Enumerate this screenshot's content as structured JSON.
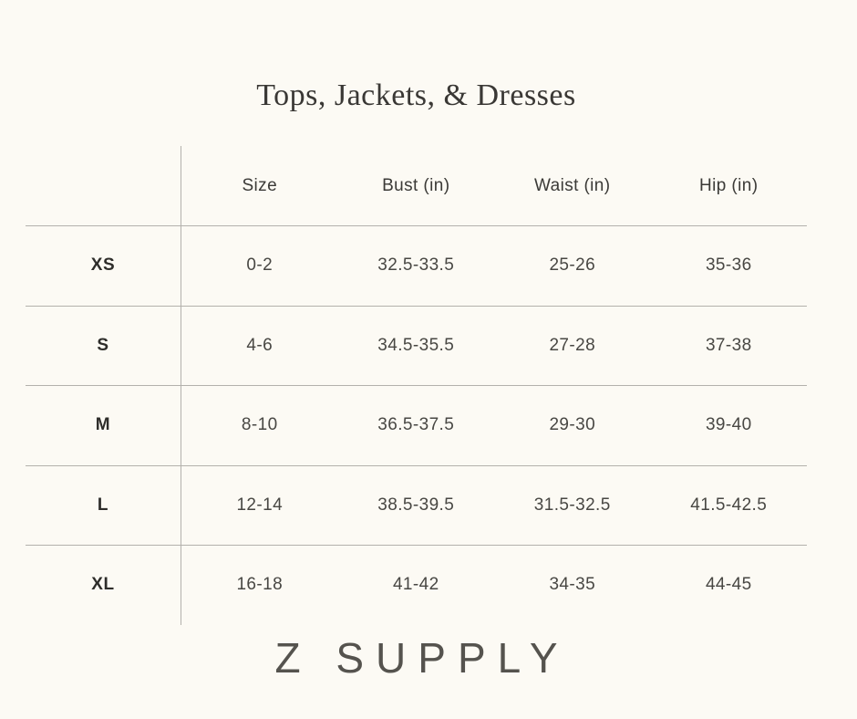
{
  "title": "Tops, Jackets, & Dresses",
  "brand": {
    "logo_text": "Z SUPPLY"
  },
  "chart_data": {
    "type": "table",
    "title": "Tops, Jackets, & Dresses",
    "columns": [
      "Size",
      "Bust (in)",
      "Waist (in)",
      "Hip (in)"
    ],
    "row_labels": [
      "XS",
      "S",
      "M",
      "L",
      "XL"
    ],
    "rows": [
      [
        "0-2",
        "32.5-33.5",
        "25-26",
        "35-36"
      ],
      [
        "4-6",
        "34.5-35.5",
        "27-28",
        "37-38"
      ],
      [
        "8-10",
        "36.5-37.5",
        "29-30",
        "39-40"
      ],
      [
        "12-14",
        "38.5-39.5",
        "31.5-32.5",
        "41.5-42.5"
      ],
      [
        "16-18",
        "41-42",
        "34-35",
        "44-45"
      ]
    ],
    "footer": "Z SUPPLY",
    "layout": {
      "grid": "horizontal rules between rows, single vertical rule right of size-label column, no outer border",
      "alignment": "all cells centered"
    }
  },
  "colors": {
    "background": "#FCFAF4",
    "line": "#B3B1AC",
    "title_text": "#3A3835",
    "header_text": "#3B3A37",
    "cell_text": "#484743",
    "label_text": "#2E2D2A",
    "logo_text": "#55534E"
  }
}
